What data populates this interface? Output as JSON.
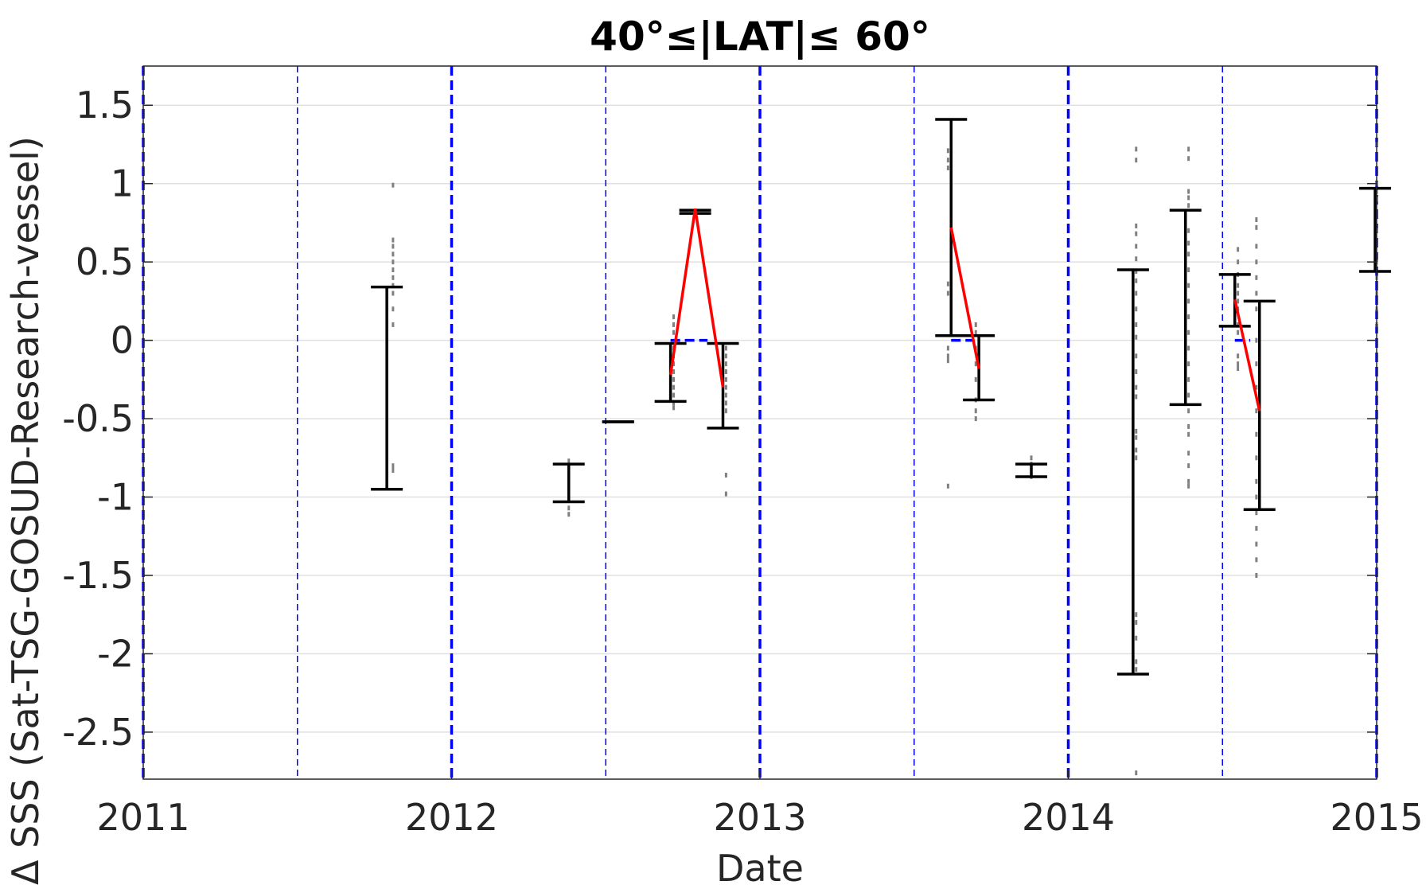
{
  "chart_data": {
    "type": "scatter",
    "title": "40°≤|LAT|≤ 60°",
    "xlabel": "Date",
    "ylabel": "Δ SSS (Sat-TSG-GOSUD-Research-vessel)",
    "xlim": [
      2011,
      2015
    ],
    "ylim": [
      -2.8,
      1.75
    ],
    "x_ticks": [
      "2011",
      "2012",
      "2013",
      "2014",
      "2015"
    ],
    "y_ticks": [
      "1.5",
      "1",
      "0.5",
      "0",
      "-0.5",
      "-1",
      "-1.5",
      "-2",
      "-2.5"
    ],
    "y_tick_values": [
      1.5,
      1,
      0.5,
      0,
      -0.5,
      -1,
      -1.5,
      -2,
      -2.5
    ],
    "grid": "horizontal",
    "year_lines": [
      2011,
      2012,
      2013,
      2014,
      2015
    ],
    "half_year_lines": [
      2011.5,
      2012.5,
      2013.5,
      2014.5
    ],
    "error_bars": [
      {
        "x": 2011.79,
        "low": -0.95,
        "high": 0.34
      },
      {
        "x": 2012.38,
        "low": -1.03,
        "high": -0.79
      },
      {
        "x": 2012.54,
        "low": -0.52,
        "high": -0.52
      },
      {
        "x": 2012.71,
        "low": -0.39,
        "high": -0.02
      },
      {
        "x": 2012.79,
        "low": 0.81,
        "high": 0.83
      },
      {
        "x": 2012.88,
        "low": -0.56,
        "high": -0.02
      },
      {
        "x": 2013.62,
        "low": 0.03,
        "high": 1.41
      },
      {
        "x": 2013.71,
        "low": -0.38,
        "high": 0.03
      },
      {
        "x": 2013.88,
        "low": -0.87,
        "high": -0.79
      },
      {
        "x": 2014.21,
        "low": -2.13,
        "high": 0.45
      },
      {
        "x": 2014.38,
        "low": -0.41,
        "high": 0.83
      },
      {
        "x": 2014.54,
        "low": 0.09,
        "high": 0.42
      },
      {
        "x": 2014.62,
        "low": -1.08,
        "high": 0.25
      },
      {
        "x": 2014.995,
        "low": 0.44,
        "high": 0.97
      }
    ],
    "trend_segments": [
      {
        "x": [
          2012.71,
          2012.79,
          2012.88
        ],
        "y": [
          -0.22,
          0.84,
          -0.3
        ]
      },
      {
        "x": [
          2013.62,
          2013.71
        ],
        "y": [
          0.72,
          -0.18
        ]
      },
      {
        "x": [
          2014.54,
          2014.62
        ],
        "y": [
          0.26,
          -0.45
        ]
      }
    ],
    "zero_marks": [
      {
        "x0": 2012.71,
        "x1": 2012.83
      },
      {
        "x0": 2013.62,
        "x1": 2013.69
      },
      {
        "x0": 2014.54,
        "x1": 2014.59
      }
    ],
    "scatter_points": [
      {
        "x": 2011.81,
        "y": [
          0.99,
          0.64,
          0.6,
          0.55,
          0.5,
          0.45,
          0.4,
          0.35,
          0.3,
          0.2,
          0.1,
          -0.8,
          -0.83
        ]
      },
      {
        "x": 2012.38,
        "y": [
          -0.77,
          -0.82,
          -0.88,
          -0.92,
          -0.97,
          -1.02,
          -1.07,
          -1.11
        ]
      },
      {
        "x": 2012.72,
        "y": [
          0.15,
          0.1,
          0.05,
          -0.05,
          -0.1,
          -0.15,
          -0.2,
          -0.25,
          -0.3,
          -0.35,
          -0.4,
          -0.43
        ]
      },
      {
        "x": 2012.89,
        "y": [
          -0.05,
          -0.1,
          -0.15,
          -0.2,
          -0.25,
          -0.3,
          -0.35,
          -0.4,
          -0.45,
          -0.86,
          -0.98
        ]
      },
      {
        "x": 2013.61,
        "y": [
          1.21,
          1.15,
          1.1,
          0.36,
          0.3,
          -0.05,
          -0.1,
          -0.13,
          -0.93
        ]
      },
      {
        "x": 2013.7,
        "y": [
          0.1,
          0.05,
          -0.05,
          -0.15,
          -0.25,
          -0.38,
          -0.45,
          -0.5
        ]
      },
      {
        "x": 2013.88,
        "y": [
          -0.75,
          -0.79,
          -0.83,
          -0.87
        ]
      },
      {
        "x": 2014.22,
        "y": [
          1.22,
          1.15,
          0.73,
          0.68,
          0.6,
          0.52,
          0.44,
          0.38,
          0.3,
          0.2,
          0.1,
          0.02,
          -0.1,
          -0.2,
          -0.3,
          -0.36,
          -0.58,
          -0.62,
          -0.7,
          -0.75,
          -1.75,
          -1.8,
          -1.9,
          -2.05,
          -2.1,
          -2.76
        ]
      },
      {
        "x": 2014.39,
        "y": [
          1.22,
          1.16,
          0.95,
          0.91,
          0.86,
          0.7,
          0.62,
          0.55,
          0.45,
          0.35,
          0.25,
          0.15,
          0.05,
          -0.05,
          -0.15,
          -0.25,
          -0.35,
          -0.45,
          -0.55,
          -0.6,
          -0.72,
          -0.8,
          -0.9,
          -0.93
        ]
      },
      {
        "x": 2014.55,
        "y": [
          0.58,
          0.5,
          0.42,
          0.35,
          0.3,
          0.25,
          0.2,
          0.1,
          0.05,
          -0.1,
          -0.15,
          -0.18
        ]
      },
      {
        "x": 2014.61,
        "y": [
          0.77,
          0.72,
          0.6,
          0.5,
          0.4,
          0.3,
          0.2,
          0.0,
          -0.15,
          -0.3,
          -0.45,
          -0.6,
          -0.75,
          -0.9,
          -1.0,
          -1.1,
          -1.2,
          -1.3,
          -1.4,
          -1.5
        ]
      },
      {
        "x": 2015.0,
        "y": [
          1.25,
          1.0,
          0.95,
          0.9,
          0.7,
          0.5,
          0.4,
          0.3,
          0.2,
          0.1
        ]
      }
    ]
  },
  "colors": {
    "error_bar": "#000000",
    "trend": "#ff0000",
    "year_line": "#0000ff",
    "half_year_line": "#0000ff",
    "zero_mark": "#0000ff",
    "scatter": "#808080",
    "grid": "#e0e0e0"
  }
}
